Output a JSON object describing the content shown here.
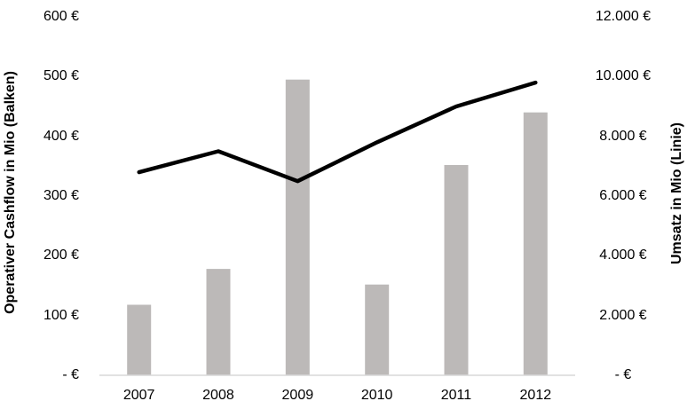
{
  "chart_data": {
    "type": "bar",
    "subtype": "bar-line-combo",
    "categories": [
      "2007",
      "2008",
      "2009",
      "2010",
      "2011",
      "2012"
    ],
    "series": [
      {
        "name": "Operativer Cashflow",
        "render": "bar",
        "axis": "left",
        "values": [
          118,
          178,
          495,
          152,
          352,
          440
        ]
      },
      {
        "name": "Umsatz",
        "render": "line",
        "axis": "right",
        "values": [
          6800,
          7500,
          6500,
          7800,
          9000,
          9800
        ]
      }
    ],
    "left_axis": {
      "title": "Operativer Cashflow in Mio (Balken)",
      "min": 0,
      "max": 600,
      "tick_values": [
        600,
        500,
        400,
        300,
        200,
        100,
        0
      ],
      "tick_labels": [
        "600 €",
        "500 €",
        "400 €",
        "300 €",
        "200 €",
        "100 €",
        "- €"
      ]
    },
    "right_axis": {
      "title": "Umsatz in Mio (Linie)",
      "min": 0,
      "max": 12000,
      "tick_values": [
        12000,
        10000,
        8000,
        6000,
        4000,
        2000,
        0
      ],
      "tick_labels": [
        "12.000 €",
        "10.000 €",
        "8.000 €",
        "6.000 €",
        "4.000 €",
        "2.000 €",
        "- €"
      ]
    },
    "title": "",
    "xlabel": "",
    "grid": false,
    "legend_position": "none",
    "colors": {
      "bar_fill": "#bcb9b8",
      "line": "#000000",
      "axis_line": "#d9d9d9",
      "text": "#000000",
      "background": "#ffffff"
    }
  }
}
